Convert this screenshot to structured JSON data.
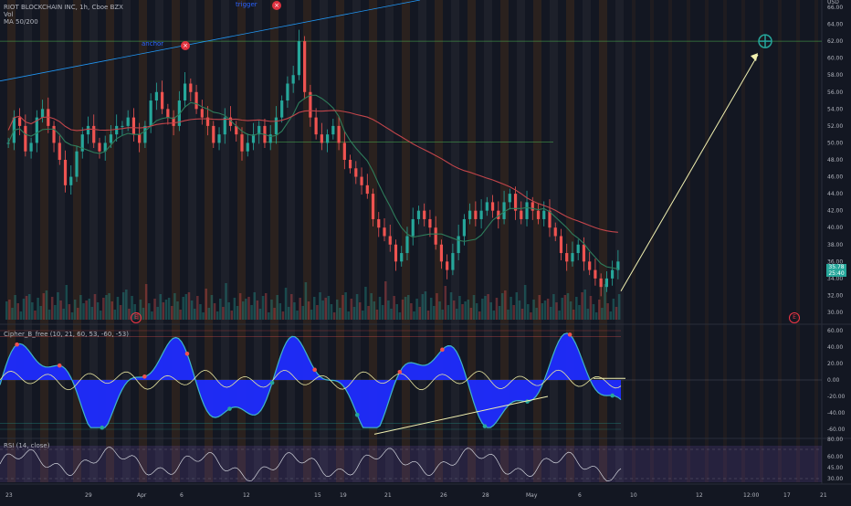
{
  "header": {
    "title": "RIOT BLOCKCHAIN INC, 1h, Cboe BZX",
    "vol_label": "Vol",
    "ma_label": "MA 50/200"
  },
  "annotations": {
    "trigger_label": "trigger",
    "anchor_label": "anchor",
    "trigger_x": "×",
    "anchor_x": "×",
    "earnings_left": "E",
    "earnings_right": "E"
  },
  "price_axis": {
    "currency": "USD",
    "ticks": [
      "66.00",
      "64.00",
      "62.00",
      "60.00",
      "58.00",
      "56.00",
      "54.00",
      "52.00",
      "50.00",
      "48.00",
      "46.00",
      "44.00",
      "42.00",
      "40.00",
      "38.00",
      "36.00",
      "34.00",
      "32.00",
      "30.00"
    ],
    "last_price": "35.78",
    "countdown": "25:40"
  },
  "cipher_panel": {
    "label": "Cipher_B_free (10, 21, 60, 53, -60, -53)",
    "ticks": [
      "60.00",
      "40.00",
      "20.00",
      "0.00",
      "-20.00",
      "-40.00",
      "-60.00"
    ]
  },
  "rsi_panel": {
    "label": "RSI (14, close)",
    "ticks": [
      "60.00",
      "45.00",
      "30.00"
    ],
    "extra_tick": "80.00"
  },
  "time_axis": {
    "labels": [
      "23",
      "29",
      "Apr",
      "6",
      "12",
      "15",
      "19",
      "21",
      "26",
      "28",
      "May",
      "6",
      "10",
      "12",
      "12:00",
      "17",
      "21"
    ]
  },
  "colors": {
    "background": "#131722",
    "bull": "#26a69a",
    "bear": "#ef5350",
    "ma50": "#2e7d5b",
    "ma200": "#c2454a",
    "wave": "#1f2cff",
    "arrow": "#f1f0b0",
    "session": "#f57c00"
  },
  "chart_data": {
    "type": "candlestick",
    "title": "RIOT BLOCKCHAIN INC, 1h, Cboe BZX",
    "ylim": [
      29,
      67
    ],
    "price_path": [
      50,
      53,
      52,
      49,
      50,
      53,
      54,
      52,
      50,
      48,
      45,
      46,
      49,
      51,
      52,
      50,
      49,
      50,
      51,
      52,
      52,
      53,
      51,
      50,
      52,
      55,
      56,
      54,
      53,
      52,
      55,
      57,
      56,
      54,
      53,
      52,
      50,
      51,
      53,
      52,
      51,
      49,
      50,
      51,
      52,
      50,
      51,
      53,
      55,
      57,
      58,
      62,
      56,
      53,
      51,
      50,
      51,
      52,
      50,
      48,
      47,
      46,
      45,
      44,
      41,
      40,
      39,
      38,
      36,
      37,
      39,
      41,
      42,
      41,
      40,
      38,
      36,
      35,
      37,
      39,
      41,
      42,
      41,
      42,
      43,
      42,
      41,
      43,
      44,
      42,
      41,
      43,
      42,
      41,
      42,
      40,
      39,
      37,
      36,
      37,
      38,
      36,
      35,
      34,
      33,
      34,
      35,
      36
    ]
  }
}
